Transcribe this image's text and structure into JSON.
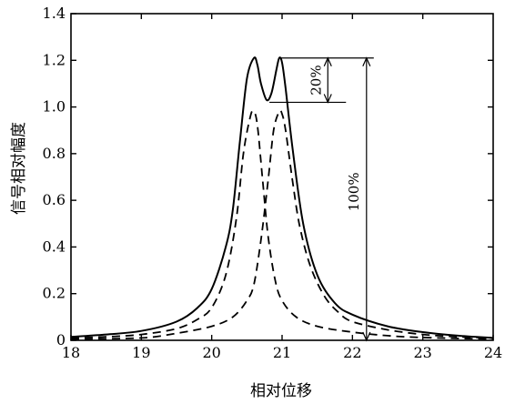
{
  "chart_data": {
    "type": "line",
    "xlabel": "相对位移",
    "ylabel": "信号相对幅度",
    "xlim": [
      18,
      24
    ],
    "ylim": [
      0,
      1.4
    ],
    "xticks": [
      "18",
      "19",
      "20",
      "21",
      "22",
      "23",
      "24"
    ],
    "yticks": [
      "0",
      "0.2",
      "0.4",
      "0.6",
      "0.8",
      "1.0",
      "1.2",
      "1.4"
    ],
    "grid": false,
    "series": [
      {
        "style": "solid",
        "x": [
          18.0,
          18.5,
          19.0,
          19.5,
          19.8,
          20.0,
          20.2,
          20.3,
          20.4,
          20.5,
          20.6,
          20.65,
          20.7,
          20.78,
          20.85,
          20.92,
          20.96,
          21.0,
          21.05,
          21.15,
          21.3,
          21.5,
          21.75,
          22.0,
          22.5,
          23.0,
          23.5,
          24.0
        ],
        "y": [
          0.015,
          0.025,
          0.04,
          0.08,
          0.14,
          0.22,
          0.4,
          0.56,
          0.85,
          1.12,
          1.21,
          1.18,
          1.1,
          1.03,
          1.06,
          1.16,
          1.21,
          1.19,
          1.08,
          0.82,
          0.5,
          0.28,
          0.16,
          0.11,
          0.06,
          0.035,
          0.02,
          0.01
        ]
      },
      {
        "style": "dashed",
        "x": [
          18.0,
          18.5,
          19.0,
          19.5,
          19.8,
          20.0,
          20.2,
          20.35,
          20.45,
          20.55,
          20.6,
          20.65,
          20.72,
          20.8,
          20.9,
          21.0,
          21.2,
          21.5,
          22.0,
          22.5,
          23.0,
          24.0
        ],
        "y": [
          0.01,
          0.015,
          0.025,
          0.05,
          0.09,
          0.14,
          0.28,
          0.52,
          0.8,
          0.96,
          0.98,
          0.92,
          0.7,
          0.45,
          0.26,
          0.17,
          0.1,
          0.06,
          0.035,
          0.02,
          0.012,
          0.005
        ]
      },
      {
        "style": "dashed",
        "x": [
          18.0,
          19.0,
          19.5,
          20.0,
          20.3,
          20.5,
          20.6,
          20.7,
          20.8,
          20.88,
          20.96,
          21.0,
          21.05,
          21.15,
          21.25,
          21.4,
          21.6,
          21.8,
          22.0,
          22.5,
          23.0,
          23.5,
          24.0
        ],
        "y": [
          0.005,
          0.01,
          0.03,
          0.06,
          0.1,
          0.17,
          0.24,
          0.43,
          0.68,
          0.9,
          0.98,
          0.97,
          0.9,
          0.68,
          0.49,
          0.32,
          0.19,
          0.12,
          0.08,
          0.045,
          0.025,
          0.015,
          0.01
        ]
      }
    ],
    "annotations": [
      {
        "text": "20%",
        "from": 1.02,
        "to": 1.21,
        "x": 21.65
      },
      {
        "text": "100%",
        "from": 0.0,
        "to": 1.21,
        "x": 22.2
      }
    ]
  }
}
